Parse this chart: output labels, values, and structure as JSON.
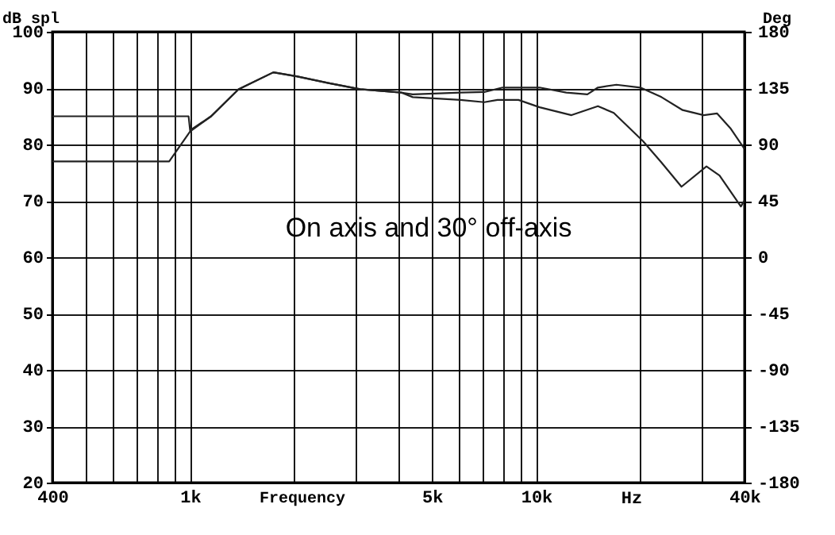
{
  "chart_data": {
    "type": "line",
    "xlabel": "Frequency",
    "ylabel": "dB spl",
    "y2label": "Deg",
    "annotations": [
      "On axis and 30° off-axis",
      "Hz"
    ],
    "log": "x",
    "grid": true,
    "line_style": "solid",
    "xlim": [
      400,
      40000
    ],
    "xticks": [
      {
        "value": 400,
        "label": "400"
      },
      {
        "value": 500,
        "label": null
      },
      {
        "value": 600,
        "label": null
      },
      {
        "value": 700,
        "label": null
      },
      {
        "value": 800,
        "label": null
      },
      {
        "value": 900,
        "label": null
      },
      {
        "value": 1000,
        "label": "1k"
      },
      {
        "value": 2000,
        "label": null
      },
      {
        "value": 3000,
        "label": null
      },
      {
        "value": 4000,
        "label": null
      },
      {
        "value": 5000,
        "label": "5k"
      },
      {
        "value": 6000,
        "label": null
      },
      {
        "value": 7000,
        "label": null
      },
      {
        "value": 8000,
        "label": null
      },
      {
        "value": 9000,
        "label": null
      },
      {
        "value": 10000,
        "label": "10k"
      },
      {
        "value": 20000,
        "label": null
      },
      {
        "value": 30000,
        "label": null
      },
      {
        "value": 40000,
        "label": "40k"
      }
    ],
    "ylim": [
      20,
      100
    ],
    "yticks": [
      20,
      30,
      40,
      50,
      60,
      70,
      80,
      90,
      100
    ],
    "y2lim": [
      -180,
      180
    ],
    "y2ticks": [
      -180,
      -135,
      -90,
      -45,
      0,
      45,
      90,
      135,
      180
    ],
    "series": [
      {
        "color": "#222222",
        "x": [
          400,
          990,
          1000,
          1150,
          1380,
          1740,
          2030,
          2510,
          3100,
          4080,
          4400,
          6040,
          7080,
          8000,
          10230,
          12220,
          14060,
          15080,
          17060,
          20000,
          23020,
          26500,
          30480,
          33340,
          36400,
          40000
        ],
        "values": [
          85,
          85,
          82.5,
          85,
          89.8,
          92.8,
          92.1,
          90.9,
          89.8,
          89.2,
          88.9,
          89.2,
          89.3,
          90.1,
          90.1,
          89.2,
          88.9,
          90.1,
          90.6,
          90.1,
          88.4,
          86.1,
          85.2,
          85.5,
          82.9,
          79.2
        ]
      },
      {
        "color": "#222222",
        "x": [
          400,
          870,
          1000,
          1150,
          1380,
          1740,
          2030,
          2510,
          3100,
          4080,
          4400,
          6040,
          7080,
          7730,
          8890,
          10230,
          12650,
          15080,
          16760,
          20350,
          23020,
          26300,
          31050,
          33880,
          39040,
          40000
        ],
        "values": [
          77,
          77,
          82.3,
          85,
          89.8,
          92.8,
          92.1,
          90.9,
          89.8,
          89.2,
          88.4,
          87.9,
          87.5,
          87.9,
          87.9,
          86.6,
          85.2,
          86.8,
          85.6,
          80.6,
          76.8,
          72.5,
          76.1,
          74.5,
          69,
          70.1
        ]
      }
    ]
  }
}
